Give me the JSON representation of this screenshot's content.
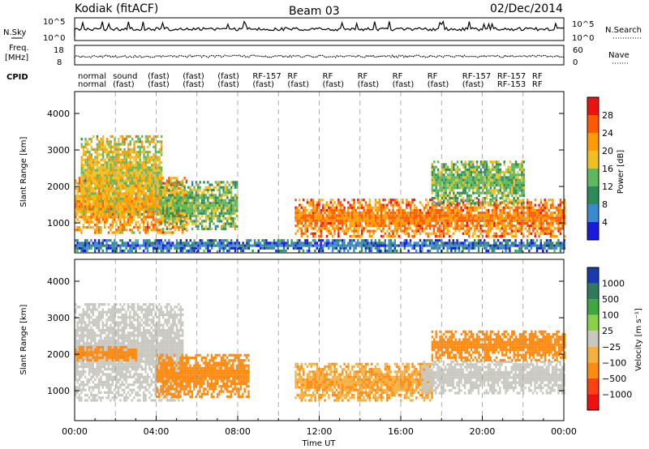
{
  "header": {
    "station": "Kodiak (fitACF)",
    "beam": "Beam 03",
    "date": "02/Dec/2014"
  },
  "top_panel": {
    "left_label": "N.Sky",
    "right_label": "N.Search",
    "left_ticks": [
      "10^5",
      "10^0"
    ],
    "right_ticks": [
      "10^5",
      "10^0"
    ]
  },
  "freq_panel": {
    "left_label_1": "Freq.",
    "left_label_2": "[MHz]",
    "right_label": "Nave",
    "left_ticks": [
      "18",
      "8"
    ],
    "right_ticks": [
      "60",
      "0"
    ]
  },
  "cpid": {
    "label": "CPID",
    "row1": [
      "normal",
      "sound",
      "(fast)",
      "(fast)",
      "(fast)",
      "RF-157",
      "RF",
      "RF",
      "RF",
      "RF",
      "RF",
      "RF-157",
      "RF-157",
      "RF"
    ],
    "row2": [
      "normal",
      "(fast)",
      "(fast)",
      "(fast)",
      "(fast)",
      "(fast)",
      "(fast)",
      "(fast)",
      "(fast)",
      "(fast)",
      "(fast)",
      "(fast)",
      "RF-153",
      "RF"
    ]
  },
  "x_axis": {
    "label": "Time UT",
    "ticks": [
      "00:00",
      "04:00",
      "08:00",
      "12:00",
      "16:00",
      "20:00",
      "00:00"
    ]
  },
  "power_panel": {
    "ylabel": "Slant Range [km]",
    "yticks": [
      "1000",
      "2000",
      "3000",
      "4000"
    ],
    "colorbar_label": "Power [dB]",
    "colorbar_ticks": [
      "4",
      "8",
      "12",
      "16",
      "20",
      "24",
      "28"
    ],
    "colors": [
      "#1a1adc",
      "#3a8ad0",
      "#2e8b57",
      "#5fb85f",
      "#f0c020",
      "#ff9a00",
      "#ff5a00",
      "#ee1111"
    ]
  },
  "velocity_panel": {
    "ylabel": "Slant Range [km]",
    "yticks": [
      "1000",
      "2000",
      "3000",
      "4000"
    ],
    "colorbar_label": "Velocity [m s⁻¹]",
    "colorbar_ticks": [
      "1000",
      "500",
      "100",
      "25",
      "−25",
      "−100",
      "−500",
      "−1000"
    ],
    "colors": [
      "#1a3ab0",
      "#2e7a5a",
      "#3da83d",
      "#8ad04a",
      "#c8c8c0",
      "#f5b040",
      "#ff8a10",
      "#ff4010",
      "#ee1111"
    ]
  },
  "chart_data": [
    {
      "type": "heatmap",
      "title": "Power",
      "xlabel": "Time UT",
      "ylabel": "Slant Range [km]",
      "xlim": [
        0,
        24
      ],
      "ylim": [
        180,
        4600
      ],
      "zlabel": "Power [dB]",
      "zticks": [
        4,
        8,
        12,
        16,
        20,
        24,
        28
      ],
      "regions": [
        {
          "t0": 0.0,
          "t1": 5.5,
          "r0": 700,
          "r1": 2200,
          "value": 22
        },
        {
          "t0": 0.3,
          "t1": 4.3,
          "r0": 1200,
          "r1": 3400,
          "value": 18
        },
        {
          "t0": 4.2,
          "t1": 8.0,
          "r0": 800,
          "r1": 2100,
          "value": 14
        },
        {
          "t0": 10.8,
          "t1": 24.0,
          "r0": 600,
          "r1": 1600,
          "value": 24
        },
        {
          "t0": 17.5,
          "t1": 22.0,
          "r0": 1500,
          "r1": 2700,
          "value": 14
        },
        {
          "t0": 0.0,
          "t1": 24.0,
          "r0": 200,
          "r1": 500,
          "value": 6
        }
      ]
    },
    {
      "type": "heatmap",
      "title": "Velocity",
      "xlabel": "Time UT",
      "ylabel": "Slant Range [km]",
      "xlim": [
        0,
        24
      ],
      "ylim": [
        180,
        4600
      ],
      "zlabel": "Velocity [m s⁻¹]",
      "zticks": [
        1000,
        500,
        100,
        25,
        -25,
        -100,
        -500,
        -1000
      ],
      "regions": [
        {
          "t0": 0.0,
          "t1": 5.3,
          "r0": 700,
          "r1": 3400,
          "value": 0
        },
        {
          "t0": 0.0,
          "t1": 3.0,
          "r0": 1800,
          "r1": 2200,
          "value": -150
        },
        {
          "t0": 4.0,
          "t1": 8.5,
          "r0": 800,
          "r1": 2000,
          "value": -120
        },
        {
          "t0": 10.8,
          "t1": 17.5,
          "r0": 700,
          "r1": 1700,
          "value": -90
        },
        {
          "t0": 17.0,
          "t1": 24.0,
          "r0": 900,
          "r1": 1800,
          "value": 0
        },
        {
          "t0": 17.5,
          "t1": 24.0,
          "r0": 1800,
          "r1": 2600,
          "value": -200
        }
      ]
    }
  ]
}
